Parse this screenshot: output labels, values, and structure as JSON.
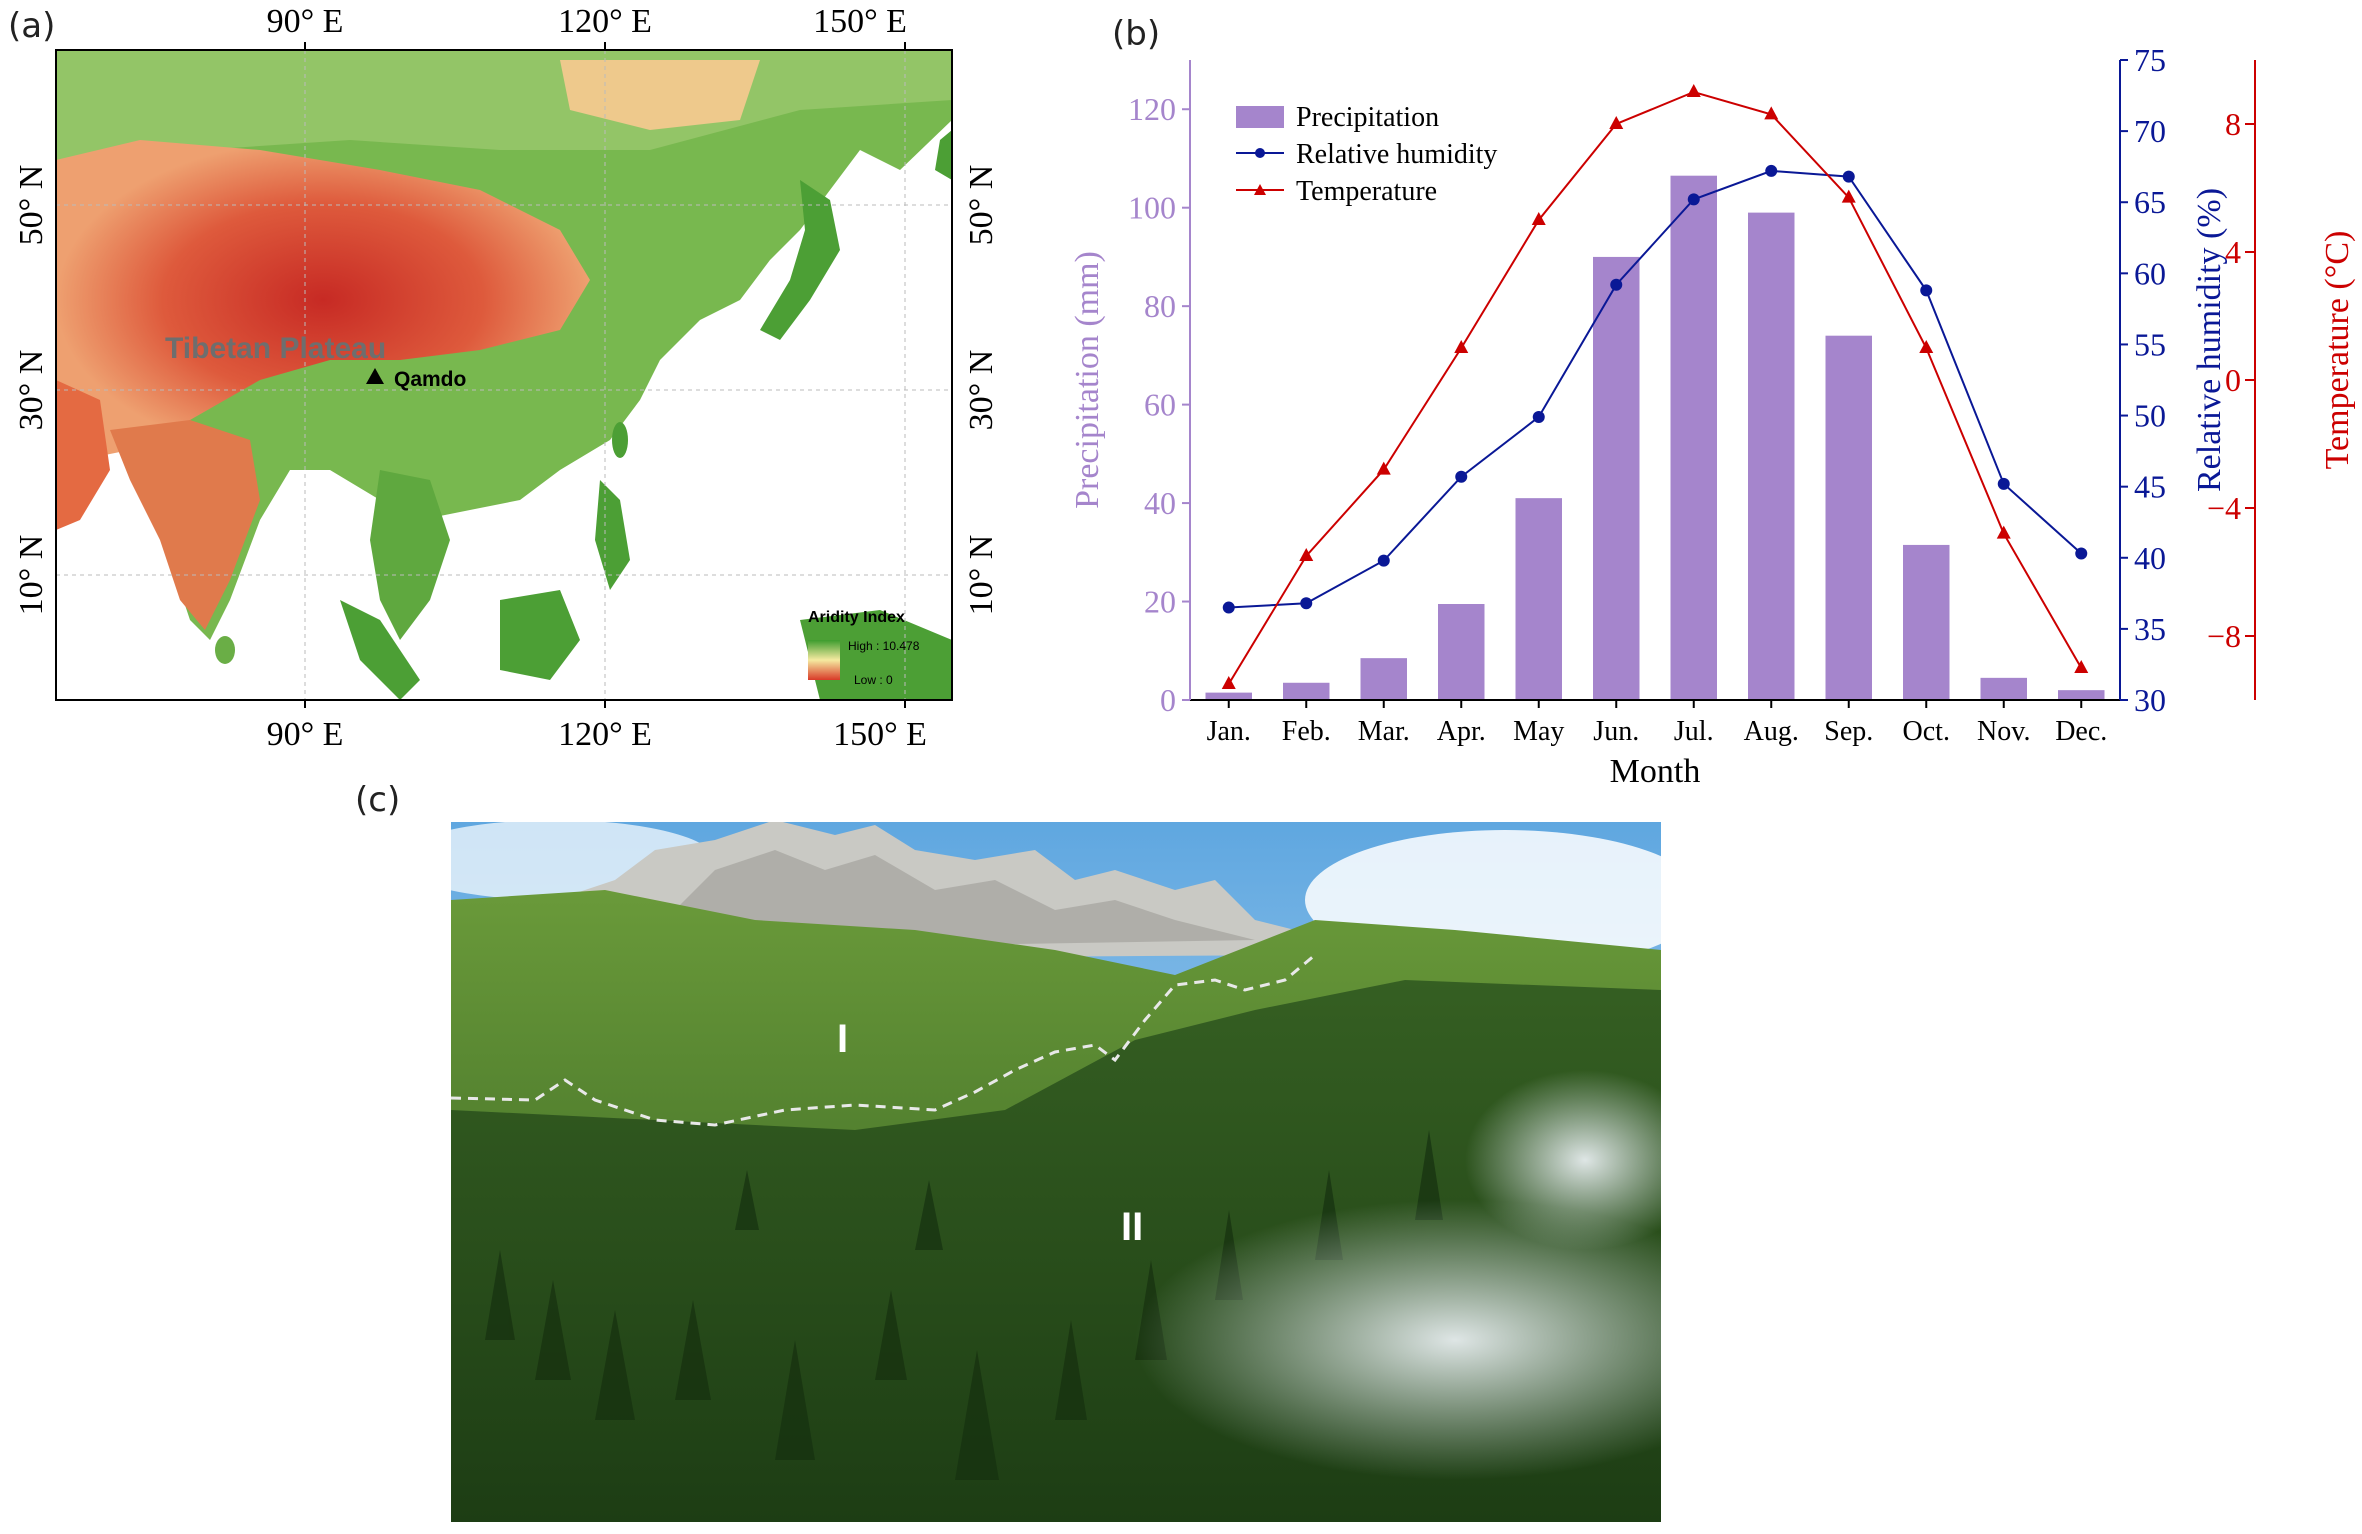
{
  "map": {
    "panel_label": "(a)",
    "top_lon_labels": [
      "90° E",
      "120° E",
      "150° E"
    ],
    "bottom_lon_labels": [
      "90° E",
      "120° E",
      "150° E"
    ],
    "left_lat_labels": [
      "50° N",
      "30° N",
      "10° N"
    ],
    "right_lat_labels": [
      "50° N",
      "30° N",
      "10° N"
    ],
    "region_label": "Tibetan Plateau",
    "site_label": "Qamdo",
    "legend": {
      "title": "Aridity Index",
      "high": "High : 10.478",
      "low": "Low : 0"
    },
    "colors": {
      "arid": "#d4382a",
      "humid": "#3f9e32",
      "mid": "#f2e6a0",
      "ocean": "#ffffff"
    }
  },
  "chart_data": {
    "type": "bar",
    "panel_label": "(b)",
    "categories": [
      "Jan.",
      "Feb.",
      "Mar.",
      "Apr.",
      "May",
      "Jun.",
      "Jul.",
      "Aug.",
      "Sep.",
      "Oct.",
      "Nov.",
      "Dec."
    ],
    "xlabel": "Month",
    "series": [
      {
        "name": "Precipitation",
        "type": "bar",
        "axis": "left",
        "color": "#a585cc",
        "values": [
          1.5,
          3.5,
          8.5,
          19.5,
          41,
          90,
          106.5,
          99,
          74,
          31.5,
          4.5,
          2
        ]
      },
      {
        "name": "Relative humidity",
        "type": "line",
        "axis": "right1",
        "color": "#0a1896",
        "marker": "circle",
        "values": [
          36.5,
          36.8,
          39.8,
          45.7,
          49.9,
          59.2,
          65.2,
          67.2,
          66.8,
          58.8,
          45.2,
          40.3
        ]
      },
      {
        "name": "Temperature",
        "type": "line",
        "axis": "right2",
        "color": "#cc0000",
        "marker": "triangle",
        "values": [
          -9.5,
          -5.5,
          -2.8,
          1.0,
          5.0,
          8.0,
          9.0,
          8.3,
          5.7,
          1.0,
          -4.8,
          -9.0
        ]
      }
    ],
    "axes": {
      "left": {
        "label": "Precipitation (mm)",
        "min": 0,
        "max": 130,
        "ticks": [
          0,
          20,
          40,
          60,
          80,
          100,
          120
        ],
        "color": "#a585cc"
      },
      "right1": {
        "label": "Relative humidity (%)",
        "min": 30,
        "max": 75,
        "ticks": [
          30,
          35,
          40,
          45,
          50,
          55,
          60,
          65,
          70,
          75
        ],
        "color": "#0a1896"
      },
      "right2": {
        "label": "Temperature (°C)",
        "min": -10,
        "max": 10,
        "ticks": [
          -8,
          -4,
          0,
          4,
          8
        ],
        "tick_labels": [
          "−8",
          "−4",
          "0",
          "4",
          "8"
        ],
        "color": "#cc0000"
      }
    },
    "legend": {
      "position": "top-left"
    },
    "grid": false
  },
  "photo": {
    "panel_label": "(c)",
    "zone_labels": [
      "I",
      "II"
    ]
  }
}
